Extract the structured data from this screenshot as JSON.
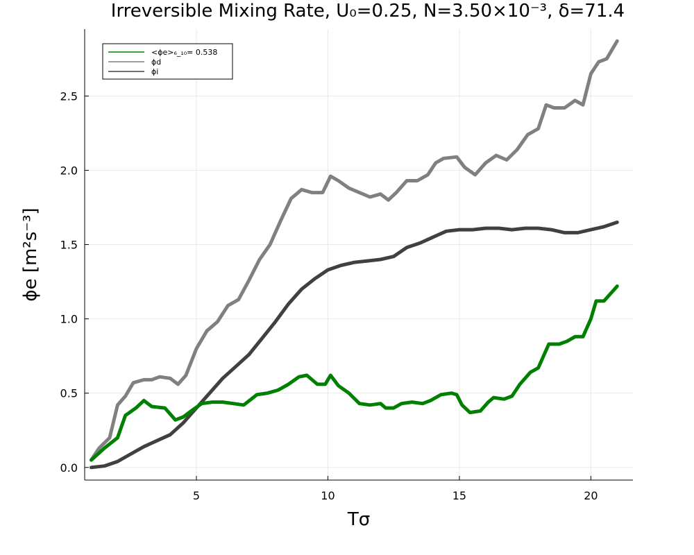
{
  "chart_data": {
    "type": "line",
    "title": "Irreversible Mixing Rate, U₀=0.25, N=3.50×10⁻³, δ=71.4",
    "xlabel": "Tσ",
    "ylabel": "ϕe [m²s⁻³]",
    "xlim": [
      0.75,
      21.6
    ],
    "ylim": [
      -0.085,
      2.95
    ],
    "xticks": [
      5,
      10,
      15,
      20
    ],
    "xtick_labels": [
      "5",
      "10",
      "15",
      "20"
    ],
    "yticks": [
      0.0,
      0.5,
      1.0,
      1.5,
      2.0,
      2.5
    ],
    "ytick_labels": [
      "0.0",
      "0.5",
      "1.0",
      "1.5",
      "2.0",
      "2.5"
    ],
    "grid": true,
    "legend_position": "top-left",
    "series": [
      {
        "name": "<ϕe>₆_₁₀= 0.538",
        "color": "#008000",
        "x": [
          1.0,
          1.5,
          2.0,
          2.3,
          2.7,
          3.0,
          3.3,
          3.8,
          4.2,
          4.5,
          4.8,
          5.2,
          5.6,
          6.0,
          6.4,
          6.8,
          7.3,
          7.7,
          8.1,
          8.5,
          8.9,
          9.2,
          9.6,
          9.9,
          10.1,
          10.4,
          10.8,
          11.2,
          11.6,
          12.0,
          12.2,
          12.5,
          12.8,
          13.2,
          13.6,
          13.9,
          14.3,
          14.7,
          14.9,
          15.1,
          15.4,
          15.8,
          16.1,
          16.3,
          16.7,
          17.0,
          17.3,
          17.7,
          18.0,
          18.4,
          18.8,
          19.1,
          19.4,
          19.7,
          20.0,
          20.2,
          20.5,
          21.0
        ],
        "y": [
          0.05,
          0.13,
          0.2,
          0.35,
          0.4,
          0.45,
          0.41,
          0.4,
          0.32,
          0.34,
          0.38,
          0.43,
          0.44,
          0.44,
          0.43,
          0.42,
          0.49,
          0.5,
          0.52,
          0.56,
          0.61,
          0.62,
          0.56,
          0.56,
          0.62,
          0.55,
          0.5,
          0.43,
          0.42,
          0.43,
          0.4,
          0.4,
          0.43,
          0.44,
          0.43,
          0.45,
          0.49,
          0.5,
          0.49,
          0.42,
          0.37,
          0.38,
          0.44,
          0.47,
          0.46,
          0.48,
          0.56,
          0.64,
          0.67,
          0.83,
          0.83,
          0.85,
          0.88,
          0.88,
          1.0,
          1.12,
          1.12,
          1.22
        ]
      },
      {
        "name": "ϕd",
        "color": "#808080",
        "x": [
          1.0,
          1.3,
          1.7,
          2.0,
          2.3,
          2.6,
          3.0,
          3.3,
          3.6,
          4.0,
          4.3,
          4.6,
          5.0,
          5.4,
          5.8,
          6.2,
          6.6,
          7.0,
          7.4,
          7.8,
          8.2,
          8.6,
          9.0,
          9.4,
          9.8,
          10.1,
          10.4,
          10.8,
          11.2,
          11.6,
          12.0,
          12.3,
          12.6,
          13.0,
          13.4,
          13.8,
          14.1,
          14.4,
          14.9,
          15.2,
          15.6,
          16.0,
          16.4,
          16.8,
          17.2,
          17.6,
          18.0,
          18.3,
          18.6,
          19.0,
          19.4,
          19.7,
          20.0,
          20.3,
          20.6,
          21.0
        ],
        "y": [
          0.05,
          0.13,
          0.2,
          0.42,
          0.48,
          0.57,
          0.59,
          0.59,
          0.61,
          0.6,
          0.56,
          0.62,
          0.8,
          0.92,
          0.98,
          1.09,
          1.13,
          1.26,
          1.4,
          1.5,
          1.66,
          1.81,
          1.87,
          1.85,
          1.85,
          1.96,
          1.93,
          1.88,
          1.85,
          1.82,
          1.84,
          1.8,
          1.85,
          1.93,
          1.93,
          1.97,
          2.05,
          2.08,
          2.09,
          2.02,
          1.97,
          2.05,
          2.1,
          2.07,
          2.14,
          2.24,
          2.28,
          2.44,
          2.42,
          2.42,
          2.47,
          2.44,
          2.65,
          2.73,
          2.75,
          2.87
        ]
      },
      {
        "name": "ϕi",
        "color": "#404040",
        "x": [
          1.0,
          1.5,
          2.0,
          2.5,
          3.0,
          3.5,
          4.0,
          4.5,
          5.0,
          5.5,
          6.0,
          6.5,
          7.0,
          7.5,
          8.0,
          8.5,
          9.0,
          9.5,
          10.0,
          10.5,
          11.0,
          11.5,
          12.0,
          12.5,
          13.0,
          13.5,
          14.0,
          14.5,
          15.0,
          15.5,
          16.0,
          16.5,
          17.0,
          17.5,
          18.0,
          18.5,
          19.0,
          19.5,
          20.0,
          20.5,
          21.0
        ],
        "y": [
          0.0,
          0.01,
          0.04,
          0.09,
          0.14,
          0.18,
          0.22,
          0.3,
          0.4,
          0.5,
          0.6,
          0.68,
          0.76,
          0.87,
          0.98,
          1.1,
          1.2,
          1.27,
          1.33,
          1.36,
          1.38,
          1.39,
          1.4,
          1.42,
          1.48,
          1.51,
          1.55,
          1.59,
          1.6,
          1.6,
          1.61,
          1.61,
          1.6,
          1.61,
          1.61,
          1.6,
          1.58,
          1.58,
          1.6,
          1.62,
          1.65
        ]
      }
    ]
  }
}
